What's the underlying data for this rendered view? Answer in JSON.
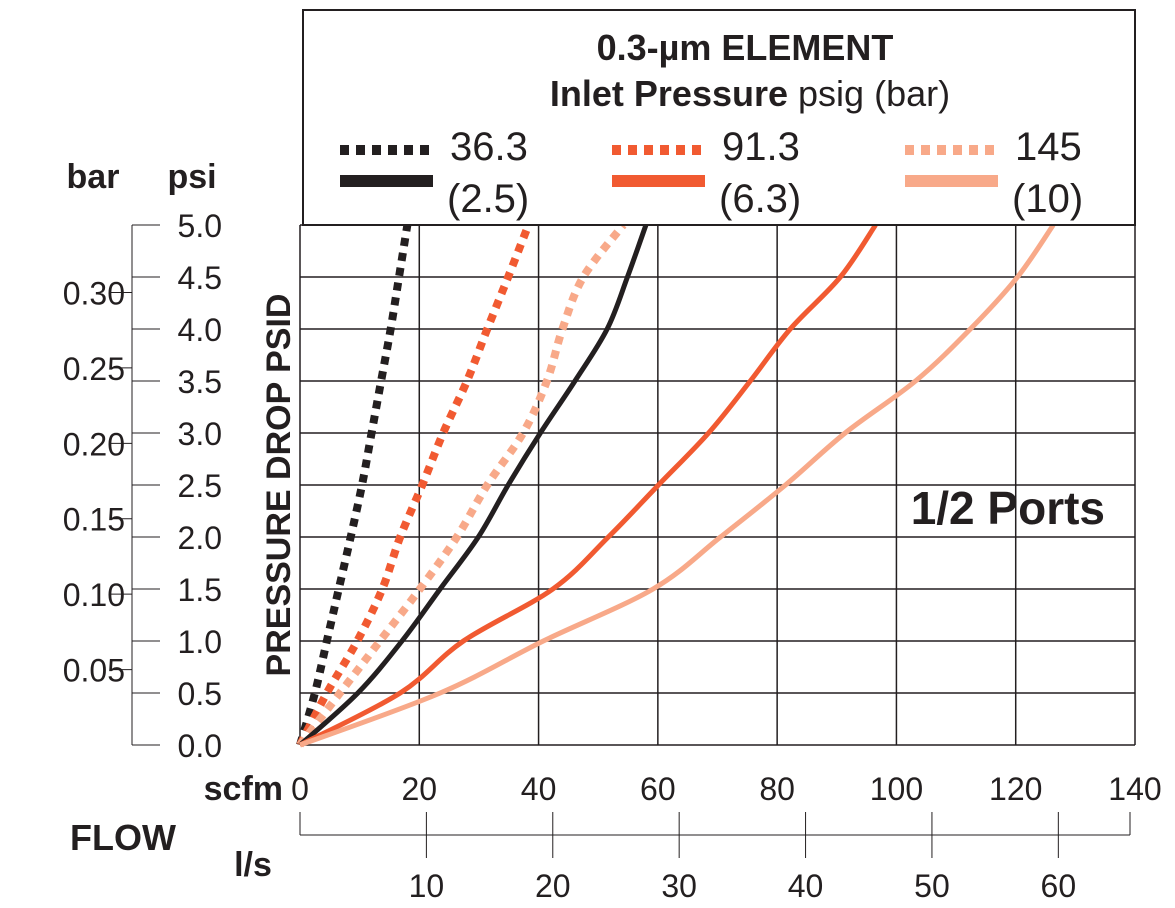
{
  "chart_data": {
    "type": "line",
    "title": "0.3-µm ELEMENT",
    "legend_title_bold": "Inlet Pressure",
    "legend_title_rest": "psig (bar)",
    "legend_placement": "top",
    "annotation": "1/2 Ports",
    "ylabel": "PRESSURE DROP PSID",
    "xlabel": "FLOW",
    "x_unit_primary": "scfm",
    "x_unit_secondary": "l/s",
    "y_unit_primary": "psi",
    "y_unit_secondary": "bar",
    "xlim": [
      0,
      140
    ],
    "ylim": [
      0,
      5.0
    ],
    "grid": true,
    "x_ticks": [
      "0",
      "20",
      "40",
      "60",
      "80",
      "100",
      "120",
      "140"
    ],
    "x_tick_values": [
      0,
      20,
      40,
      60,
      80,
      100,
      120,
      140
    ],
    "x2_ticks": [
      "10",
      "20",
      "30",
      "40",
      "50",
      "60"
    ],
    "x2_tick_values": [
      10,
      20,
      30,
      40,
      50,
      60
    ],
    "y_ticks": [
      "0.0",
      "0.5",
      "1.0",
      "1.5",
      "2.0",
      "2.5",
      "3.0",
      "3.5",
      "4.0",
      "4.5",
      "5.0"
    ],
    "y_tick_values": [
      0,
      0.5,
      1.0,
      1.5,
      2.0,
      2.5,
      3.0,
      3.5,
      4.0,
      4.5,
      5.0
    ],
    "y2_ticks": [
      "0.05",
      "0.10",
      "0.15",
      "0.20",
      "0.25",
      "0.30"
    ],
    "y2_tick_values": [
      0.05,
      0.1,
      0.15,
      0.2,
      0.25,
      0.3
    ],
    "y_values": [
      0,
      0.5,
      1.0,
      1.5,
      2.0,
      2.5,
      3.0,
      3.5,
      4.0,
      4.5,
      5.0
    ],
    "series": [
      {
        "name": "36.3",
        "name2": "(2.5)",
        "style": "dotted",
        "color": "#231f20",
        "x": [
          0,
          2.5,
          4.5,
          6.5,
          8.5,
          10.4,
          12,
          13.6,
          15.2,
          16.6,
          18
        ]
      },
      {
        "name": "91.3",
        "name2": "(6.3)",
        "style": "dotted",
        "color": "#f15a31",
        "x": [
          0,
          4.5,
          9.6,
          13.8,
          16.8,
          20.5,
          24,
          28,
          31.4,
          34.9,
          38.3
        ]
      },
      {
        "name": "145",
        "name2": "(10)",
        "style": "dotted",
        "color": "#f8a989",
        "x": [
          0,
          6.7,
          13.4,
          20.1,
          26.3,
          31.4,
          37.4,
          41.4,
          44,
          47.5,
          54.2
        ]
      },
      {
        "name": "36.3",
        "name2": "(2.5)",
        "style": "solid",
        "color": "#231f20",
        "x": [
          0,
          9.7,
          17.1,
          23.5,
          29.9,
          34.9,
          40.3,
          46.1,
          51.5,
          54.9,
          58
        ]
      },
      {
        "name": "91.3",
        "name2": "(6.3)",
        "style": "solid",
        "color": "#f15a31",
        "x": [
          0,
          16.8,
          27.4,
          42.4,
          51.7,
          60.1,
          68.5,
          75.5,
          82.2,
          90.6,
          96.5
        ]
      },
      {
        "name": "145",
        "name2": "(10)",
        "style": "solid",
        "color": "#f8a989",
        "x": [
          0,
          23.5,
          40.8,
          59.2,
          70.5,
          81.4,
          91.4,
          103.2,
          112.4,
          120.3,
          126.3
        ]
      }
    ]
  }
}
